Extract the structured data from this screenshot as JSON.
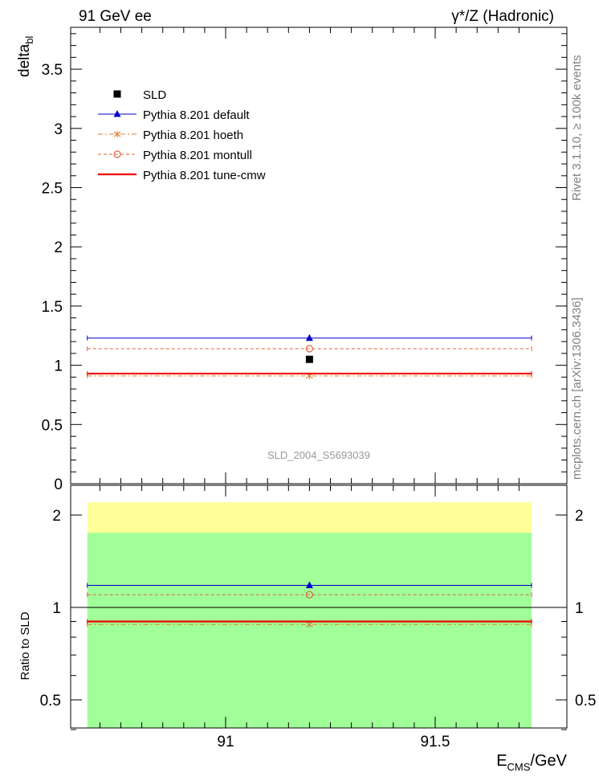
{
  "header": {
    "left": "91 GeV ee",
    "right": "γ*/Z (Hadronic)"
  },
  "side_text": {
    "rivet": "Rivet 3.1.10, ≥ 100k events",
    "mcplots": "mcplots.cern.ch [arXiv:1306.3436]"
  },
  "watermark": "SLD_2004_S5693039",
  "colors": {
    "data": "#000000",
    "default": "#0000cc",
    "hoeth": "#e08030",
    "montull": "#e0603a",
    "tunecmw": "#ee0000",
    "band_yellow": "#ffff99",
    "band_green": "#a0ff99"
  },
  "chart_data": [
    {
      "type": "scatter",
      "panel": "main",
      "ylabel_main": "delta",
      "ylabel_sub": "bl",
      "ylim": [
        0,
        3.9
      ],
      "xlim": [
        90.67,
        91.73
      ],
      "yticks": [
        "0",
        "0.5",
        "1",
        "1.5",
        "2",
        "2.5",
        "3",
        "3.5"
      ],
      "legend_placement": "top-left",
      "data": {
        "name": "SLD",
        "x": 91.2,
        "y": 1.05
      },
      "series": [
        {
          "name": "Pythia 8.201 default",
          "key": "default",
          "x": 91.2,
          "y": 1.23,
          "marker": "triangle",
          "dash": "solid"
        },
        {
          "name": "Pythia 8.201 hoeth",
          "key": "hoeth",
          "x": 91.2,
          "y": 0.91,
          "marker": "star",
          "dash": "dashdot"
        },
        {
          "name": "Pythia 8.201 montull",
          "key": "montull",
          "x": 91.2,
          "y": 1.14,
          "marker": "circle",
          "dash": "dashed"
        },
        {
          "name": "Pythia 8.201 tune-cmw",
          "key": "tunecmw",
          "x": 91.2,
          "y": 0.93,
          "marker": "none",
          "dash": "solid"
        }
      ]
    },
    {
      "type": "scatter",
      "panel": "ratio",
      "ylabel": "Ratio to SLD",
      "ylim": [
        0.35,
        2.3
      ],
      "log_y": true,
      "xlabel_main": "E",
      "xlabel_sub": "CMS",
      "xlabel_unit": "/GeV",
      "xticks": [
        "91",
        "91.5"
      ],
      "yticks": [
        "0.5",
        "1",
        "2"
      ],
      "bands": {
        "yellow": [
          0.35,
          2.2
        ],
        "green": [
          0.35,
          1.75
        ]
      },
      "series": [
        {
          "key": "default",
          "x": 91.2,
          "y": 1.18
        },
        {
          "key": "hoeth",
          "x": 91.2,
          "y": 0.88
        },
        {
          "key": "montull",
          "x": 91.2,
          "y": 1.1
        },
        {
          "key": "tunecmw",
          "x": 91.2,
          "y": 0.9
        }
      ]
    }
  ]
}
